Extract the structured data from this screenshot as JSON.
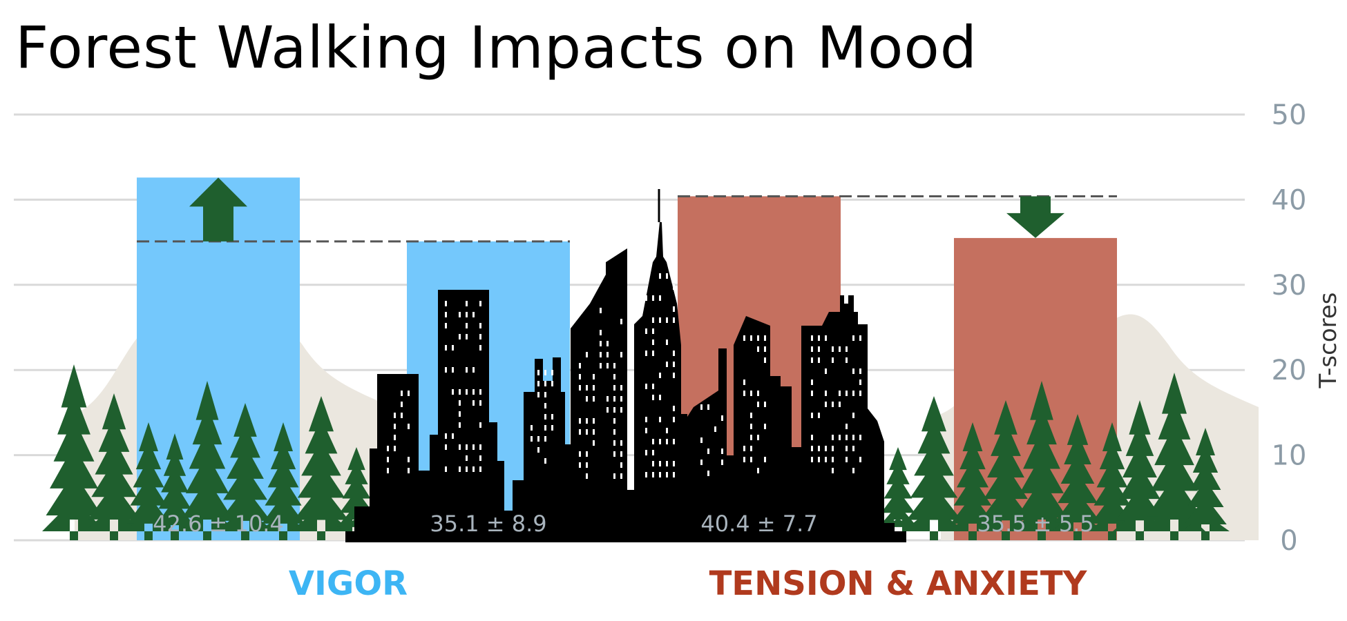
{
  "chart_data": {
    "type": "bar",
    "title": "Forest Walking Impacts on Mood",
    "ylabel": "T-scores",
    "ylim": [
      0,
      50
    ],
    "yticks": [
      0,
      10,
      20,
      30,
      40,
      50
    ],
    "grid": true,
    "groups": [
      {
        "name": "VIGOR",
        "color": "#3db5f4",
        "bars": [
          {
            "setting": "forest",
            "value": 42.6,
            "label": "42.6 ± 10.4",
            "color": "#74c8fc"
          },
          {
            "setting": "urban",
            "value": 35.1,
            "label": "35.1 ± 8.9",
            "color": "#74c8fc"
          }
        ],
        "change": "increase"
      },
      {
        "name": "TENSION & ANXIETY",
        "color": "#b03a1e",
        "bars": [
          {
            "setting": "urban",
            "value": 40.4,
            "label": "40.4 ± 7.7",
            "color": "#c5705f"
          },
          {
            "setting": "forest",
            "value": 35.5,
            "label": "35.5 ± 5.5",
            "color": "#c5705f"
          }
        ],
        "change": "decrease"
      }
    ],
    "colors": {
      "grid": "#d9d9d9",
      "arrow": "#1f5f2e",
      "tree": "#1f5f2e",
      "mountain": "#ebe7df",
      "city": "#000000",
      "reference_line": "#555555"
    }
  }
}
